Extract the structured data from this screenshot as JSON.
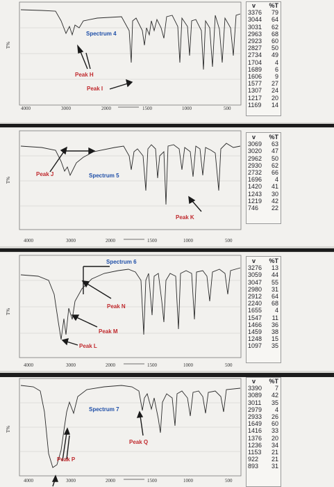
{
  "chart_data": [
    {
      "type": "line",
      "spectrum_label": "Spectrum 4",
      "x_ticks": [
        "4000",
        "3000",
        "2000",
        "1500",
        "1000",
        "500"
      ],
      "peaks": [
        {
          "name": "Peak H"
        },
        {
          "name": "Peak I"
        }
      ],
      "table_header": [
        "v",
        "%T"
      ],
      "table": [
        [
          "3376",
          "79"
        ],
        [
          "3044",
          "64"
        ],
        [
          "3031",
          "62"
        ],
        [
          "2963",
          "68"
        ],
        [
          "2923",
          "60"
        ],
        [
          "2827",
          "50"
        ],
        [
          "2734",
          "49"
        ],
        [
          "1704",
          "4"
        ],
        [
          "1689",
          "6"
        ],
        [
          "1606",
          "9"
        ],
        [
          "1577",
          "27"
        ],
        [
          "1307",
          "24"
        ],
        [
          "1217",
          "20"
        ],
        [
          "1169",
          "14"
        ]
      ]
    },
    {
      "type": "line",
      "spectrum_label": "Spectrum 5",
      "x_ticks": [
        "4000",
        "3000",
        "2000",
        "1500",
        "1000",
        "500"
      ],
      "peaks": [
        {
          "name": "Peak J"
        },
        {
          "name": "Peak K"
        }
      ],
      "table_header": [
        "v",
        "%T"
      ],
      "table": [
        [
          "3069",
          "63"
        ],
        [
          "3020",
          "47"
        ],
        [
          "2962",
          "50"
        ],
        [
          "2930",
          "62"
        ],
        [
          "2732",
          "66"
        ],
        [
          "1696",
          "4"
        ],
        [
          "1420",
          "41"
        ],
        [
          "1243",
          "30"
        ],
        [
          "1219",
          "42"
        ],
        [
          "746",
          "22"
        ]
      ]
    },
    {
      "type": "line",
      "spectrum_label": "Spectrum 6",
      "x_ticks": [
        "4000",
        "3000",
        "2000",
        "1500",
        "1000",
        "500"
      ],
      "peaks": [
        {
          "name": "Peak N"
        },
        {
          "name": "Peak M"
        },
        {
          "name": "Peak L"
        }
      ],
      "table_header": [
        "v",
        "%T"
      ],
      "table": [
        [
          "3276",
          "13"
        ],
        [
          "3059",
          "44"
        ],
        [
          "3047",
          "55"
        ],
        [
          "2980",
          "31"
        ],
        [
          "2912",
          "64"
        ],
        [
          "2240",
          "68"
        ],
        [
          "1655",
          "4"
        ],
        [
          "1547",
          "11"
        ],
        [
          "1466",
          "36"
        ],
        [
          "1459",
          "38"
        ],
        [
          "1248",
          "15"
        ],
        [
          "1097",
          "35"
        ]
      ]
    },
    {
      "type": "line",
      "spectrum_label": "Spectrum 7",
      "x_ticks": [
        "4000",
        "3000",
        "2000",
        "1500",
        "1000",
        "500"
      ],
      "peaks": [
        {
          "name": "Peak P"
        },
        {
          "name": "Peak Q"
        }
      ],
      "table_header": [
        "v",
        "%T"
      ],
      "table": [
        [
          "3390",
          "7"
        ],
        [
          "3089",
          "42"
        ],
        [
          "3011",
          "35"
        ],
        [
          "2979",
          "4"
        ],
        [
          "2933",
          "26"
        ],
        [
          "1649",
          "60"
        ],
        [
          "1416",
          "33"
        ],
        [
          "1376",
          "20"
        ],
        [
          "1236",
          "34"
        ],
        [
          "1153",
          "21"
        ],
        [
          "922",
          "21"
        ],
        [
          "893",
          "31"
        ]
      ]
    }
  ],
  "colors": {
    "spectrum_label": "#1f4fa8",
    "peak_label": "#c0292d",
    "trace": "#2a2a2a",
    "background": "#f2f1ee"
  }
}
